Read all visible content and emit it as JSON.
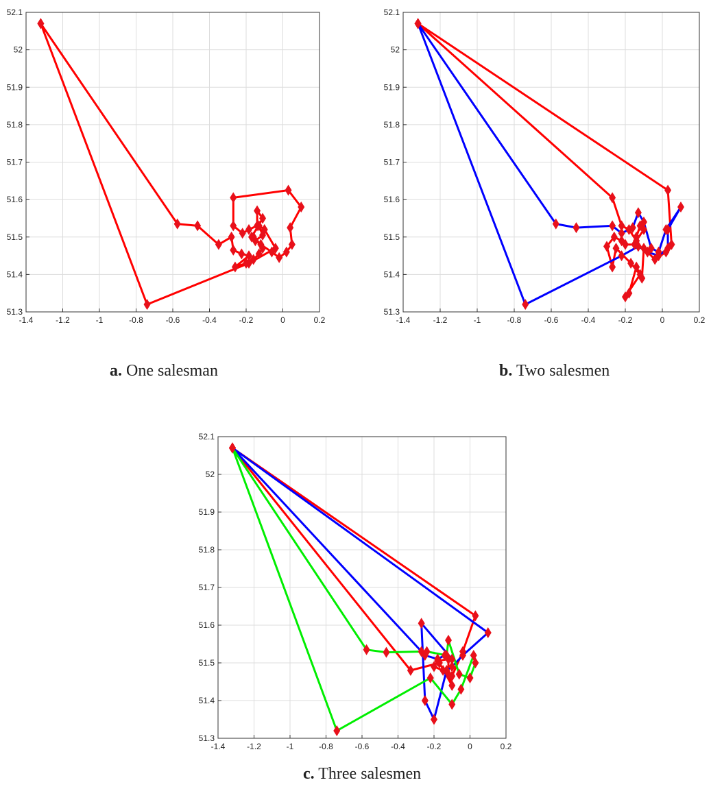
{
  "captions": [
    {
      "letter": "a.",
      "text": "One salesman"
    },
    {
      "letter": "b.",
      "text": "Two salesmen"
    },
    {
      "letter": "c.",
      "text": "Three salesmen"
    }
  ],
  "chart_data": [
    {
      "type": "line",
      "title": "",
      "xlabel": "",
      "ylabel": "",
      "xlim": [
        -1.4,
        0.2
      ],
      "ylim": [
        51.3,
        52.1
      ],
      "xticks": [
        -1.4,
        -1.2,
        -1,
        -0.8,
        -0.6,
        -0.4,
        -0.2,
        0,
        0.2
      ],
      "yticks": [
        51.3,
        51.4,
        51.5,
        51.6,
        51.7,
        51.8,
        51.9,
        52,
        52.1
      ],
      "xtick_labels": [
        "-1.4",
        "-1.2",
        "-1",
        "-0.8",
        "-0.6",
        "-0.4",
        "-0.2",
        "0",
        "0.2"
      ],
      "ytick_labels": [
        "51.3",
        "51.4",
        "51.5",
        "51.6",
        "51.7",
        "51.8",
        "51.9",
        "52",
        "52.1"
      ],
      "grid": true,
      "marker": "diamond",
      "marker_color": "#e8101a",
      "series": [
        {
          "color": "#ff0000",
          "x": [
            -1.32,
            -0.575,
            -0.465,
            -0.35,
            -0.28,
            -0.27,
            -0.225,
            -0.185,
            -0.26,
            -0.2,
            -0.16,
            -0.13,
            -0.11,
            -0.16,
            -0.12,
            -0.06,
            -0.02,
            0.02,
            0.05,
            0.04,
            0.1,
            0.03,
            -0.27,
            -0.27,
            -0.22,
            -0.185,
            -0.14,
            -0.14,
            -0.11,
            -0.17,
            -0.15,
            -0.11,
            -0.13,
            -0.1,
            -0.04,
            -0.185,
            -0.74,
            -1.32
          ],
          "y": [
            52.07,
            51.535,
            51.53,
            51.48,
            51.5,
            51.465,
            51.455,
            51.45,
            51.42,
            51.43,
            51.44,
            51.455,
            51.47,
            51.5,
            51.48,
            51.46,
            51.445,
            51.46,
            51.48,
            51.525,
            51.58,
            51.625,
            51.605,
            51.53,
            51.51,
            51.52,
            51.53,
            51.57,
            51.55,
            51.5,
            51.49,
            51.505,
            51.53,
            51.52,
            51.47,
            51.43,
            51.32,
            52.07
          ]
        }
      ]
    },
    {
      "type": "line",
      "title": "",
      "xlabel": "",
      "ylabel": "",
      "xlim": [
        -1.4,
        0.2
      ],
      "ylim": [
        51.3,
        52.1
      ],
      "xticks": [
        -1.4,
        -1.2,
        -1,
        -0.8,
        -0.6,
        -0.4,
        -0.2,
        0,
        0.2
      ],
      "yticks": [
        51.3,
        51.4,
        51.5,
        51.6,
        51.7,
        51.8,
        51.9,
        52,
        52.1
      ],
      "xtick_labels": [
        "-1.4",
        "-1.2",
        "-1",
        "-0.8",
        "-0.6",
        "-0.4",
        "-0.2",
        "0",
        "0.2"
      ],
      "ytick_labels": [
        "51.3",
        "51.4",
        "51.5",
        "51.6",
        "51.7",
        "51.8",
        "51.9",
        "52",
        "52.1"
      ],
      "grid": true,
      "marker": "diamond",
      "marker_color": "#e8101a",
      "series": [
        {
          "color": "#ff0000",
          "x": [
            -1.32,
            0.03,
            0.05,
            0.02,
            -0.04,
            -0.1,
            -0.11,
            -0.14,
            -0.18,
            -0.2,
            -0.12,
            -0.17,
            -0.25,
            -0.27,
            -0.3,
            -0.26,
            -0.22,
            -0.2,
            -0.15,
            -0.14,
            -0.12,
            -0.1,
            -0.14,
            -0.18,
            -0.22,
            -0.27,
            -1.32
          ],
          "y": [
            52.07,
            51.625,
            51.48,
            51.46,
            51.44,
            51.47,
            51.39,
            51.42,
            51.35,
            51.34,
            51.4,
            51.43,
            51.47,
            51.42,
            51.475,
            51.5,
            51.49,
            51.48,
            51.48,
            51.5,
            51.53,
            51.52,
            51.49,
            51.52,
            51.53,
            51.605,
            52.07
          ]
        },
        {
          "color": "#0000ff",
          "x": [
            -1.32,
            -0.575,
            -0.465,
            -0.27,
            -0.22,
            -0.16,
            -0.13,
            -0.1,
            -0.06,
            -0.02,
            0.02,
            0.1,
            0.03,
            0.03,
            -0.02,
            -0.08,
            -0.13,
            -0.22,
            -0.74,
            -1.32
          ],
          "y": [
            52.07,
            51.535,
            51.525,
            51.53,
            51.51,
            51.525,
            51.565,
            51.54,
            51.47,
            51.46,
            51.52,
            51.58,
            51.52,
            51.47,
            51.45,
            51.46,
            51.475,
            51.45,
            51.32,
            52.07
          ]
        }
      ]
    },
    {
      "type": "line",
      "title": "",
      "xlabel": "",
      "ylabel": "",
      "xlim": [
        -1.4,
        0.2
      ],
      "ylim": [
        51.3,
        52.1
      ],
      "xticks": [
        -1.4,
        -1.2,
        -1,
        -0.8,
        -0.6,
        -0.4,
        -0.2,
        0,
        0.2
      ],
      "yticks": [
        51.3,
        51.4,
        51.5,
        51.6,
        51.7,
        51.8,
        51.9,
        52,
        52.1
      ],
      "xtick_labels": [
        "-1.4",
        "-1.2",
        "-1",
        "-0.8",
        "-0.6",
        "-0.4",
        "-0.2",
        "0",
        "0.2"
      ],
      "ytick_labels": [
        "51.3",
        "51.4",
        "51.5",
        "51.6",
        "51.7",
        "51.8",
        "51.9",
        "52",
        "52.1"
      ],
      "grid": true,
      "marker": "diamond",
      "marker_color": "#e8101a",
      "series": [
        {
          "color": "#ff0000",
          "x": [
            -1.32,
            0.03,
            -0.04,
            -0.1,
            -0.15,
            -0.2,
            -0.18,
            -0.12,
            -0.12,
            -0.1,
            -0.17,
            -0.33,
            -1.32
          ],
          "y": [
            52.07,
            51.625,
            51.53,
            51.465,
            51.48,
            51.49,
            51.505,
            51.51,
            51.47,
            51.44,
            51.5,
            51.48,
            52.07
          ]
        },
        {
          "color": "#0000ff",
          "x": [
            -1.32,
            0.1,
            -0.04,
            -0.1,
            -0.13,
            -0.2,
            -0.25,
            -0.27,
            -0.1,
            -0.14,
            -0.18,
            -0.25,
            -1.32
          ],
          "y": [
            52.07,
            51.58,
            51.52,
            51.49,
            51.48,
            51.35,
            51.4,
            51.605,
            51.51,
            51.52,
            51.51,
            51.52,
            52.07
          ]
        },
        {
          "color": "#00ee00",
          "x": [
            -1.32,
            -0.575,
            -0.465,
            -0.27,
            -0.24,
            -0.13,
            -0.12,
            -0.06,
            0.0,
            0.03,
            0.02,
            -0.05,
            -0.1,
            -0.22,
            -0.74,
            -1.32
          ],
          "y": [
            52.07,
            51.535,
            51.528,
            51.53,
            51.53,
            51.52,
            51.56,
            51.47,
            51.46,
            51.5,
            51.52,
            51.43,
            51.39,
            51.46,
            51.32,
            52.07
          ]
        }
      ]
    }
  ]
}
